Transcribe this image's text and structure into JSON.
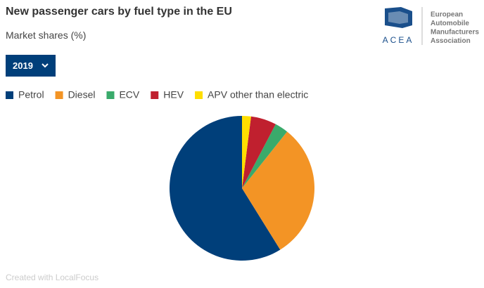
{
  "chart_data": {
    "type": "pie",
    "title": "New passenger cars by fuel type in the EU",
    "subtitle": "Market shares (%)",
    "categories": [
      "Petrol",
      "Diesel",
      "ECV",
      "HEV",
      "APV other than electric"
    ],
    "values": [
      58.9,
      30.5,
      3.0,
      5.7,
      2.0
    ],
    "colors": [
      "#003f7a",
      "#f39425",
      "#3aaa6b",
      "#c0202f",
      "#ffde00"
    ],
    "direction": "counterclockwise"
  },
  "selector": {
    "value": "2019"
  },
  "logo": {
    "acronym": "ACEA",
    "lines": [
      "European",
      "Automobile",
      "Manufacturers",
      "Association"
    ]
  },
  "footer": "Created with LocalFocus"
}
